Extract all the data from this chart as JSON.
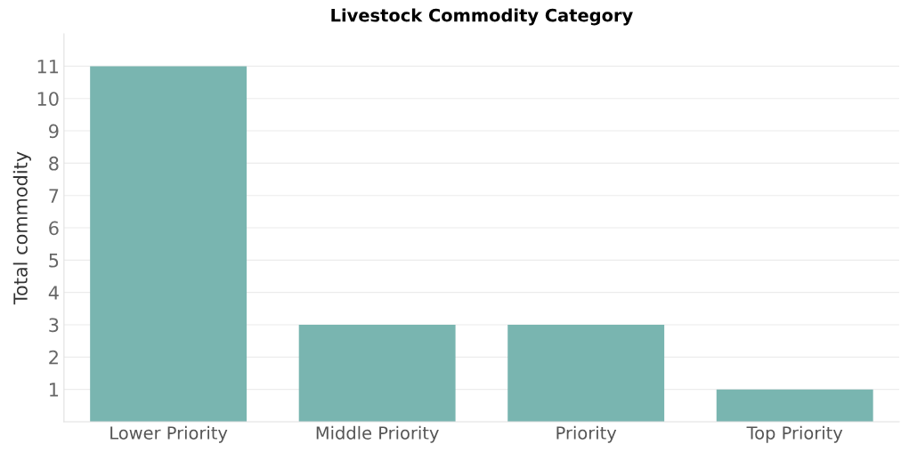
{
  "chart_data": {
    "type": "bar",
    "title": "Livestock Commodity Category",
    "ylabel": "Total commodity",
    "categories": [
      "Lower Priority",
      "Middle Priority",
      "Priority",
      "Top Priority"
    ],
    "values": [
      11,
      3,
      3,
      1
    ],
    "color": "#79b5b0",
    "ylim": [
      0,
      12
    ],
    "yticks": [
      1,
      2,
      3,
      4,
      5,
      6,
      7,
      8,
      9,
      10,
      11
    ],
    "grid": "y"
  }
}
